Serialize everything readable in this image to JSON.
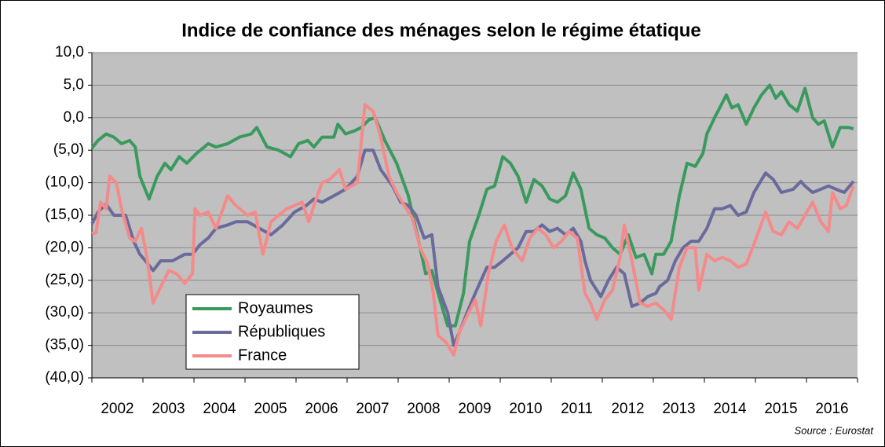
{
  "chart_data": {
    "type": "line",
    "title": "Indice de confiance des ménages selon le régime étatique",
    "source": "Source : Eurostat",
    "xlim": [
      2002,
      2017
    ],
    "xticks": [
      2002,
      2003,
      2004,
      2005,
      2006,
      2007,
      2008,
      2009,
      2010,
      2011,
      2012,
      2013,
      2014,
      2015,
      2016
    ],
    "ylim": [
      -40,
      10
    ],
    "yticks": [
      {
        "value": 10,
        "label": "10,0"
      },
      {
        "value": 5,
        "label": "5,0"
      },
      {
        "value": 0,
        "label": "0,0"
      },
      {
        "value": -5,
        "label": "(5,0)"
      },
      {
        "value": -10,
        "label": "(10,0)"
      },
      {
        "value": -15,
        "label": "(15,0)"
      },
      {
        "value": -20,
        "label": "(20,0)"
      },
      {
        "value": -25,
        "label": "(25,0)"
      },
      {
        "value": -30,
        "label": "(30,0)"
      },
      {
        "value": -35,
        "label": "(35,0)"
      },
      {
        "value": -40,
        "label": "(40,0)"
      }
    ],
    "grid": true,
    "legend": "lower left",
    "series": [
      {
        "name": "Royaumes",
        "color": "#3a9a5e",
        "x": [
          2002.0,
          2002.12,
          2002.28,
          2002.43,
          2002.58,
          2002.74,
          2002.85,
          2002.94,
          2003.12,
          2003.28,
          2003.43,
          2003.55,
          2003.71,
          2003.86,
          2004.05,
          2004.28,
          2004.43,
          2004.66,
          2004.89,
          2005.12,
          2005.23,
          2005.43,
          2005.66,
          2005.89,
          2006.05,
          2006.23,
          2006.35,
          2006.51,
          2006.74,
          2006.82,
          2006.97,
          2007.15,
          2007.28,
          2007.43,
          2007.55,
          2007.74,
          2007.97,
          2008.2,
          2008.43,
          2008.54,
          2008.66,
          2008.82,
          2008.97,
          2009.12,
          2009.28,
          2009.4,
          2009.58,
          2009.74,
          2009.89,
          2010.05,
          2010.2,
          2010.35,
          2010.51,
          2010.66,
          2010.82,
          2010.97,
          2011.12,
          2011.28,
          2011.43,
          2011.58,
          2011.74,
          2011.89,
          2012.05,
          2012.2,
          2012.35,
          2012.51,
          2012.66,
          2012.82,
          2012.97,
          2013.05,
          2013.2,
          2013.35,
          2013.51,
          2013.66,
          2013.82,
          2013.97,
          2014.05,
          2014.2,
          2014.43,
          2014.54,
          2014.66,
          2014.82,
          2014.97,
          2015.12,
          2015.28,
          2015.4,
          2015.51,
          2015.66,
          2015.82,
          2015.97,
          2016.12,
          2016.23,
          2016.35,
          2016.51,
          2016.66,
          2016.82,
          2016.92
        ],
        "values": [
          -4.7,
          -3.5,
          -2.5,
          -3,
          -4,
          -3.5,
          -4.5,
          -9,
          -12.5,
          -9,
          -7,
          -8,
          -6,
          -7,
          -5.5,
          -4,
          -4.5,
          -4,
          -3,
          -2.5,
          -1.5,
          -4.5,
          -5,
          -6,
          -4,
          -3.5,
          -4.5,
          -3,
          -3,
          -1,
          -2.5,
          -2,
          -1.5,
          -0.3,
          0,
          -3.5,
          -7,
          -12,
          -20,
          -24,
          -23.5,
          -28,
          -32,
          -32,
          -27,
          -19,
          -15,
          -11,
          -10.5,
          -6,
          -7,
          -9,
          -13,
          -9.5,
          -10.5,
          -12.5,
          -13,
          -12,
          -8.5,
          -11,
          -17,
          -18,
          -18.5,
          -20,
          -21,
          -18,
          -21.5,
          -21,
          -24,
          -21,
          -21,
          -19,
          -12,
          -7,
          -7.5,
          -5.5,
          -2.5,
          0,
          3.5,
          1.5,
          2,
          -1,
          1.5,
          3.5,
          5,
          3,
          4,
          2,
          1,
          4.5,
          0,
          -1,
          -0.5,
          -4.5,
          -1.5,
          -1.5,
          -1.7
        ]
      },
      {
        "name": "Républiques",
        "color": "#6a6a9c",
        "x": [
          2002.0,
          2002.12,
          2002.28,
          2002.43,
          2002.66,
          2002.82,
          2002.94,
          2003.05,
          2003.2,
          2003.35,
          2003.58,
          2003.82,
          2003.97,
          2004.12,
          2004.28,
          2004.43,
          2004.66,
          2004.82,
          2005.05,
          2005.28,
          2005.51,
          2005.74,
          2005.97,
          2006.2,
          2006.35,
          2006.51,
          2006.74,
          2006.97,
          2007.2,
          2007.35,
          2007.51,
          2007.66,
          2007.89,
          2008.05,
          2008.2,
          2008.35,
          2008.51,
          2008.66,
          2008.78,
          2008.97,
          2009.09,
          2009.2,
          2009.35,
          2009.51,
          2009.74,
          2009.89,
          2010.05,
          2010.2,
          2010.35,
          2010.51,
          2010.66,
          2010.82,
          2010.97,
          2011.12,
          2011.28,
          2011.43,
          2011.58,
          2011.66,
          2011.77,
          2011.97,
          2012.12,
          2012.28,
          2012.43,
          2012.58,
          2012.74,
          2012.89,
          2013.05,
          2013.12,
          2013.28,
          2013.43,
          2013.58,
          2013.74,
          2013.89,
          2014.05,
          2014.2,
          2014.35,
          2014.51,
          2014.66,
          2014.82,
          2014.97,
          2015.2,
          2015.35,
          2015.51,
          2015.74,
          2015.89,
          2015.97,
          2016.12,
          2016.28,
          2016.43,
          2016.58,
          2016.74,
          2016.92
        ],
        "values": [
          -16.3,
          -14.5,
          -13.3,
          -15,
          -15,
          -19,
          -21,
          -22,
          -23.5,
          -22,
          -22,
          -21,
          -21,
          -19.5,
          -18.5,
          -17,
          -16.5,
          -16,
          -16,
          -17,
          -18,
          -16.5,
          -14.5,
          -13.5,
          -12.5,
          -13,
          -12,
          -11,
          -9,
          -5,
          -5,
          -8,
          -10.5,
          -13,
          -13.5,
          -15,
          -18.5,
          -18,
          -26,
          -30,
          -35,
          -33,
          -30,
          -27,
          -23,
          -23,
          -22,
          -21,
          -20,
          -17.5,
          -17.5,
          -16.5,
          -17.5,
          -17,
          -18,
          -17,
          -19,
          -22,
          -25,
          -27.5,
          -25,
          -23,
          -24,
          -29,
          -28.5,
          -27.5,
          -27,
          -26,
          -25,
          -22,
          -20,
          -19,
          -19,
          -17,
          -14,
          -14,
          -13.5,
          -15,
          -14.5,
          -11.5,
          -8.5,
          -9.5,
          -11.5,
          -11,
          -9.8,
          -10.5,
          -11.5,
          -11,
          -10.5,
          -11,
          -11.5,
          -9.8
        ]
      },
      {
        "name": "France",
        "color": "#f58a8a",
        "x": [
          2002.0,
          2002.08,
          2002.17,
          2002.28,
          2002.35,
          2002.48,
          2002.58,
          2002.74,
          2002.85,
          2002.97,
          2003.09,
          2003.2,
          2003.35,
          2003.51,
          2003.66,
          2003.82,
          2003.97,
          2004.02,
          2004.12,
          2004.28,
          2004.43,
          2004.66,
          2004.82,
          2005.05,
          2005.2,
          2005.35,
          2005.51,
          2005.66,
          2005.82,
          2005.97,
          2006.12,
          2006.25,
          2006.35,
          2006.51,
          2006.66,
          2006.85,
          2006.97,
          2007.2,
          2007.35,
          2007.51,
          2007.66,
          2007.82,
          2007.97,
          2008.12,
          2008.28,
          2008.43,
          2008.58,
          2008.69,
          2008.78,
          2008.94,
          2009.09,
          2009.2,
          2009.35,
          2009.51,
          2009.62,
          2009.77,
          2009.92,
          2010.08,
          2010.23,
          2010.43,
          2010.58,
          2010.74,
          2010.89,
          2011.05,
          2011.2,
          2011.35,
          2011.51,
          2011.66,
          2011.77,
          2011.89,
          2012.05,
          2012.2,
          2012.35,
          2012.43,
          2012.58,
          2012.74,
          2012.89,
          2013.05,
          2013.2,
          2013.35,
          2013.51,
          2013.66,
          2013.82,
          2013.89,
          2014.05,
          2014.2,
          2014.35,
          2014.51,
          2014.66,
          2014.82,
          2014.97,
          2015.2,
          2015.35,
          2015.51,
          2015.66,
          2015.82,
          2015.97,
          2016.12,
          2016.28,
          2016.43,
          2016.51,
          2016.66,
          2016.78,
          2016.92
        ],
        "values": [
          -17.8,
          -17.7,
          -13,
          -14,
          -9,
          -10,
          -14,
          -18.5,
          -19,
          -17,
          -22,
          -28.5,
          -26,
          -23.5,
          -24,
          -25.5,
          -24,
          -14,
          -15,
          -14.5,
          -17,
          -12,
          -13.5,
          -15,
          -14.5,
          -21,
          -16,
          -15,
          -14,
          -13.5,
          -13,
          -16,
          -13.5,
          -10,
          -9.5,
          -8,
          -11,
          -10,
          2,
          1,
          -3,
          -9,
          -11.5,
          -13.5,
          -15.5,
          -20,
          -22.5,
          -27,
          -33.5,
          -34.5,
          -36.5,
          -33,
          -30.5,
          -28,
          -32,
          -24,
          -19,
          -16.5,
          -20,
          -22,
          -18.5,
          -17,
          -18,
          -20,
          -19,
          -17.5,
          -18.5,
          -27,
          -28.5,
          -31,
          -28,
          -26.5,
          -21.5,
          -16.5,
          -22,
          -28.5,
          -29,
          -28.5,
          -29.5,
          -31,
          -23,
          -20,
          -20,
          -26.5,
          -21,
          -22,
          -21.5,
          -22,
          -23,
          -22.5,
          -19.5,
          -14.5,
          -17.5,
          -18,
          -16,
          -17,
          -15,
          -13,
          -16,
          -17.5,
          -11.5,
          -14,
          -13.5,
          -10.5
        ]
      }
    ]
  }
}
